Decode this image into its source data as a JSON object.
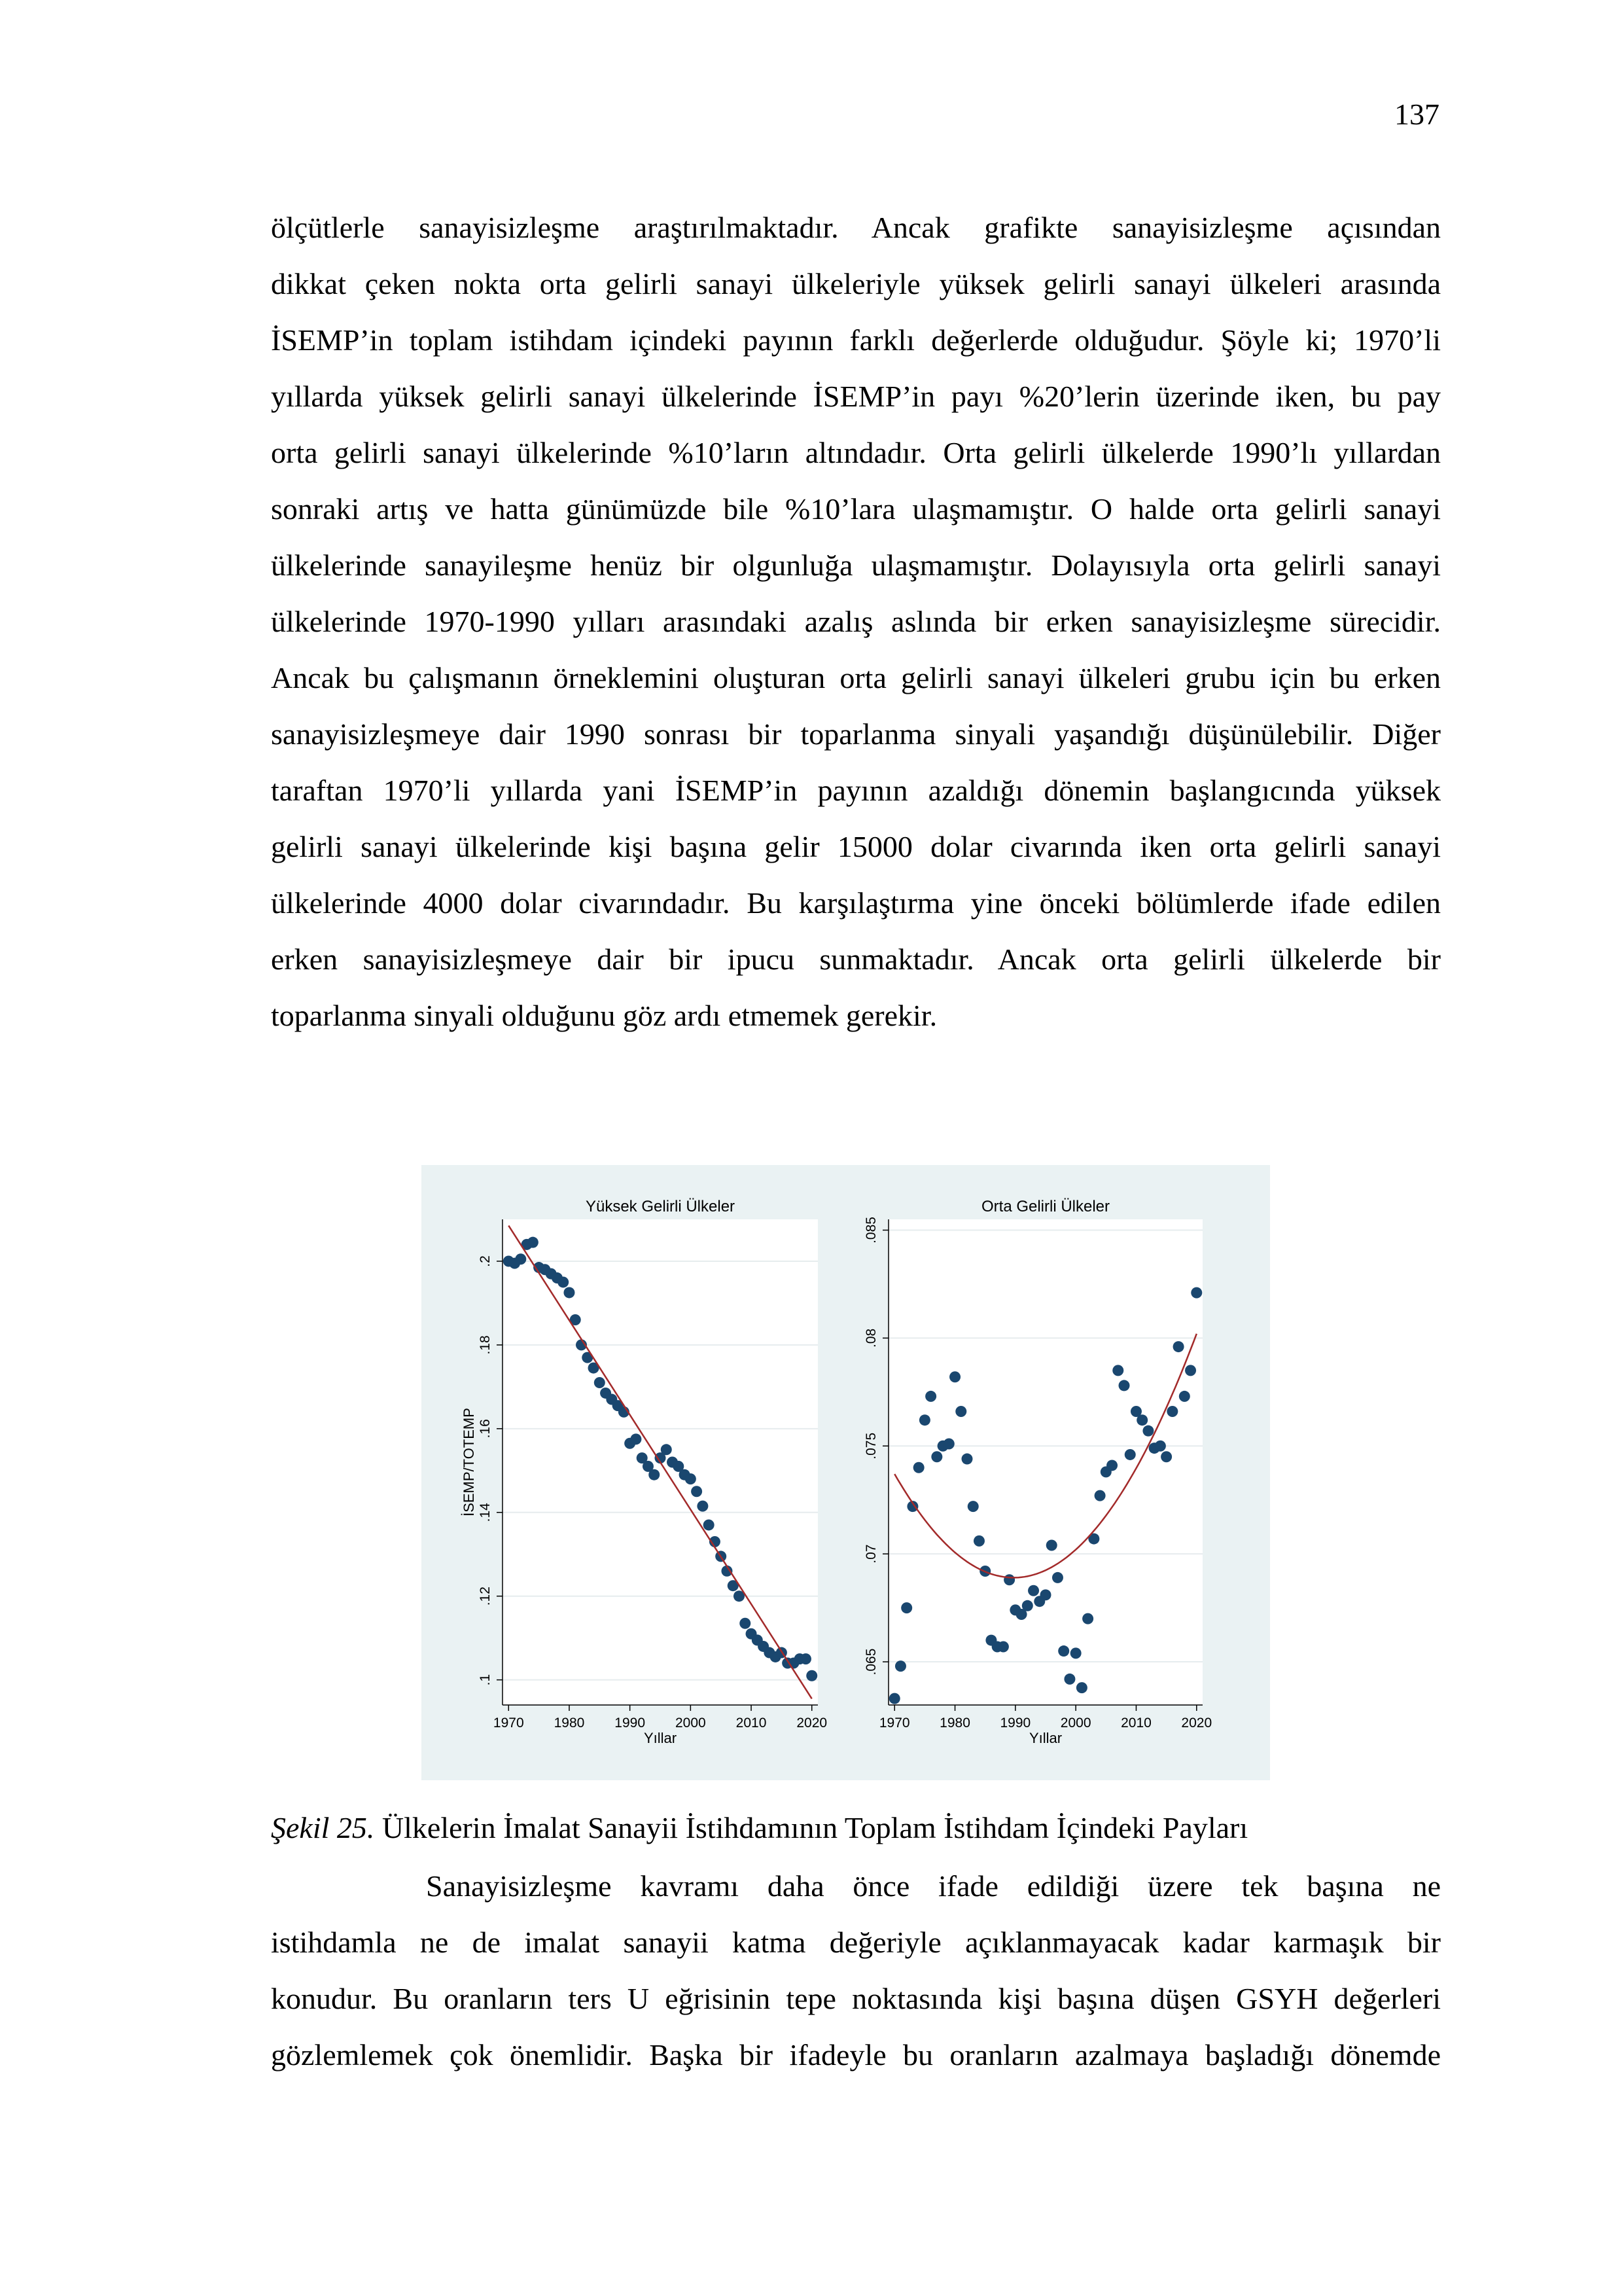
{
  "page_number": "137",
  "paragraph_1": [
    "ölçütlerle sanayisizleşme araştırılmaktadır. Ancak grafikte sanayisizleşme açısından",
    "dikkat çeken nokta orta gelirli sanayi ülkeleriyle yüksek gelirli sanayi ülkeleri arasında",
    "İSEMP’in toplam istihdam içindeki payının farklı değerlerde olduğudur. Şöyle ki; 1970’li",
    "yıllarda yüksek gelirli sanayi ülkelerinde İSEMP’in payı %20’lerin üzerinde iken, bu pay",
    "orta gelirli sanayi ülkelerinde %10’ların altındadır. Orta gelirli ülkelerde 1990’lı yıllardan",
    "sonraki artış ve hatta günümüzde bile %10’lara ulaşmamıştır. O halde orta gelirli sanayi",
    "ülkelerinde sanayileşme henüz bir olgunluğa ulaşmamıştır. Dolayısıyla orta gelirli sanayi",
    "ülkelerinde 1970-1990 yılları arasındaki azalış aslında bir erken sanayisizleşme sürecidir.",
    "Ancak bu çalışmanın örneklemini oluşturan orta gelirli sanayi ülkeleri grubu için bu erken",
    "sanayisizleşmeye dair 1990 sonrası bir toparlanma sinyali yaşandığı düşünülebilir. Diğer",
    "taraftan 1970’li yıllarda yani İSEMP’in payının azaldığı dönemin başlangıcında yüksek",
    "gelirli sanayi ülkelerinde kişi başına gelir 15000 dolar civarında iken orta gelirli sanayi",
    "ülkelerinde 4000 dolar civarındadır. Bu karşılaştırma yine önceki bölümlerde ifade edilen",
    "erken sanayisizleşmeye dair bir ipucu sunmaktadır. Ancak orta gelirli ülkelerde bir",
    "toparlanma sinyali olduğunu göz ardı etmemek gerekir."
  ],
  "caption": {
    "label": "Şekil 25.",
    "text": " Ülkelerin İmalat Sanayii İstihdamının Toplam İstihdam İçindeki Payları"
  },
  "paragraph_2": [
    "Sanayisizleşme kavramı daha önce ifade edildiği üzere tek başına ne",
    "istihdamla ne de imalat sanayii katma değeriyle açıklanmayacak kadar karmaşık bir",
    "konudur. Bu oranların ters U eğrisinin tepe noktasında kişi başına düşen GSYH değerleri",
    "gözlemlemek çok önemlidir. Başka bir ifadeyle bu oranların azalmaya başladığı dönemde"
  ],
  "chart_data": [
    {
      "type": "scatter",
      "title": "Yüksek Gelirli Ülkeler",
      "xlabel": "Yıllar",
      "ylabel": "İSEMP/TOTEMP",
      "xlim": [
        1969,
        2021
      ],
      "ylim": [
        0.094,
        0.21
      ],
      "xticks": [
        "1970",
        "1980",
        "1990",
        "2000",
        "2010",
        "2020"
      ],
      "yticks": [
        ".1",
        ".12",
        ".14",
        ".16",
        ".18",
        ".2"
      ],
      "grid": true,
      "colors": {
        "points": "#1a476f",
        "fit": "#a32a2a",
        "background": "#eaf2f3"
      },
      "x": [
        1970,
        1971,
        1972,
        1973,
        1974,
        1975,
        1976,
        1977,
        1978,
        1979,
        1980,
        1981,
        1982,
        1983,
        1984,
        1985,
        1986,
        1987,
        1988,
        1989,
        1990,
        1991,
        1992,
        1993,
        1994,
        1995,
        1996,
        1997,
        1998,
        1999,
        2000,
        2001,
        2002,
        2003,
        2004,
        2005,
        2006,
        2007,
        2008,
        2009,
        2010,
        2011,
        2012,
        2013,
        2014,
        2015,
        2016,
        2017,
        2018,
        2019,
        2020
      ],
      "y": [
        0.2,
        0.1995,
        0.2005,
        0.204,
        0.2045,
        0.1985,
        0.198,
        0.197,
        0.196,
        0.195,
        0.1925,
        0.186,
        0.18,
        0.177,
        0.1745,
        0.171,
        0.1685,
        0.167,
        0.1655,
        0.164,
        0.1565,
        0.1575,
        0.153,
        0.151,
        0.149,
        0.153,
        0.155,
        0.152,
        0.151,
        0.149,
        0.148,
        0.145,
        0.1415,
        0.137,
        0.133,
        0.1295,
        0.126,
        0.1225,
        0.12,
        0.1135,
        0.111,
        0.1095,
        0.108,
        0.1065,
        0.1055,
        0.1065,
        0.104,
        0.104,
        0.105,
        0.105,
        0.101
      ],
      "fit": {
        "type": "linear",
        "x": [
          1970,
          2020
        ],
        "y": [
          0.2085,
          0.0955
        ]
      }
    },
    {
      "type": "scatter",
      "title": "Orta Gelirli Ülkeler",
      "xlabel": "Yıllar",
      "ylabel": "",
      "xlim": [
        1969,
        2021
      ],
      "ylim": [
        0.063,
        0.0855
      ],
      "xticks": [
        "1970",
        "1980",
        "1990",
        "2000",
        "2010",
        "2020"
      ],
      "yticks": [
        ".065",
        ".07",
        ".075",
        ".08",
        ".085"
      ],
      "grid": true,
      "colors": {
        "points": "#1a476f",
        "fit": "#a32a2a",
        "background": "#eaf2f3"
      },
      "x": [
        1970,
        1971,
        1972,
        1973,
        1974,
        1975,
        1976,
        1977,
        1978,
        1979,
        1980,
        1981,
        1982,
        1983,
        1984,
        1985,
        1986,
        1987,
        1988,
        1989,
        1990,
        1991,
        1992,
        1993,
        1994,
        1995,
        1996,
        1997,
        1998,
        1999,
        2000,
        2001,
        2002,
        2003,
        2004,
        2005,
        2006,
        2007,
        2008,
        2009,
        2010,
        2011,
        2012,
        2013,
        2014,
        2015,
        2016,
        2017,
        2018,
        2019,
        2020
      ],
      "y": [
        0.0633,
        0.0648,
        0.0675,
        0.0722,
        0.074,
        0.0762,
        0.0773,
        0.0745,
        0.075,
        0.0751,
        0.0782,
        0.0766,
        0.0744,
        0.0722,
        0.0706,
        0.0692,
        0.066,
        0.0657,
        0.0657,
        0.0688,
        0.0674,
        0.0672,
        0.0676,
        0.0683,
        0.0678,
        0.0681,
        0.0704,
        0.0689,
        0.0655,
        0.0642,
        0.0654,
        0.0638,
        0.067,
        0.0707,
        0.0727,
        0.0738,
        0.0741,
        0.0785,
        0.0778,
        0.0746,
        0.0766,
        0.0762,
        0.0757,
        0.0749,
        0.075,
        0.0745,
        0.0766,
        0.0796,
        0.0773,
        0.0785,
        0.0821
      ],
      "fit": {
        "type": "quadratic",
        "x": [
          1970,
          1990,
          2020
        ],
        "y": [
          0.0737,
          0.0689,
          0.0802
        ]
      }
    }
  ]
}
